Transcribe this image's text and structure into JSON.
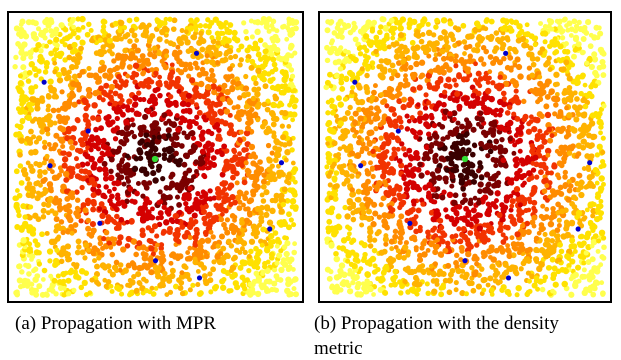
{
  "panels": [
    {
      "id": "a",
      "caption_label": "(a)",
      "caption_text": "Propagation with MPR",
      "seed": 7
    },
    {
      "id": "b",
      "caption_label": "(b)",
      "caption_text": "Propagation with the density",
      "caption_text_2": "metric",
      "seed": 19
    }
  ],
  "palette": {
    "darkest": "#3a0000",
    "dark": "#7a0000",
    "red": "#d40000",
    "red_orange": "#f23300",
    "orange": "#ff8c00",
    "light_orange": "#ffb300",
    "yellow": "#ffe100",
    "pale_yellow": "#ffff4d",
    "source_node": "#33dd33",
    "marker_node": "#0000cc"
  }
}
